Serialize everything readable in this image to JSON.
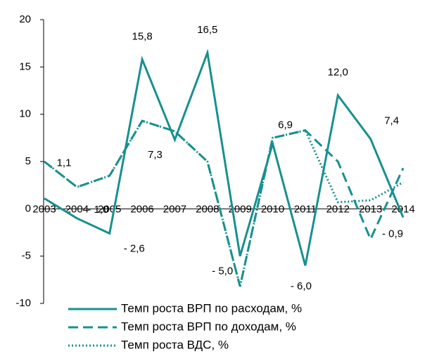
{
  "chart_data": {
    "type": "line",
    "categories": [
      "2003",
      "2004",
      "2005",
      "2006",
      "2007",
      "2008",
      "2009",
      "2010",
      "2011",
      "2012",
      "2013",
      "2014"
    ],
    "series": [
      {
        "name": "Темп роста ВРП по расходам, %",
        "color": "#17908f",
        "style": "solid",
        "values": [
          1.1,
          -1.0,
          -2.6,
          15.8,
          7.3,
          16.5,
          -5.0,
          6.9,
          -6.0,
          12.0,
          7.4,
          -0.9
        ],
        "value_labels": [
          "1,1",
          "- 1,0",
          "- 2,6",
          "15,8",
          "7,3",
          "16,5",
          "- 5,0",
          "6,9",
          "- 6,0",
          "12,0",
          "7,4",
          "- 0,9"
        ]
      },
      {
        "name": "Темп роста ВРП по доходам, %",
        "color": "#17908f",
        "style": "dashed",
        "values": [
          5.0,
          2.3,
          3.5,
          9.3,
          8.2,
          5.0,
          -8.2,
          7.5,
          8.3,
          5.0,
          -3.2,
          4.3
        ]
      },
      {
        "name": "Темп роста ВДС, %",
        "color": "#17908f",
        "style": "dotted",
        "values": [
          5.0,
          2.3,
          3.5,
          9.3,
          8.2,
          5.0,
          -8.2,
          7.5,
          8.3,
          0.7,
          0.9,
          2.8
        ]
      }
    ],
    "ylim": [
      -10,
      20
    ],
    "yticks": [
      -10,
      -5,
      0,
      5,
      10,
      15,
      20
    ]
  }
}
